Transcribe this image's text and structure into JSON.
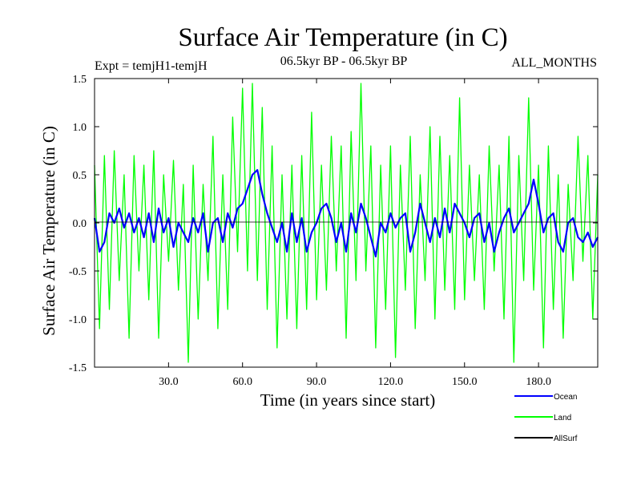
{
  "chart_data": {
    "type": "line",
    "title": "Surface Air Temperature (in C)",
    "subtitle_left": "Expt = temjH1-temjH",
    "subtitle_center": "06.5kyr BP - 06.5kyr BP",
    "subtitle_right": "ALL_MONTHS",
    "xlabel": "Time (in years since start)",
    "ylabel": "Surface Air Temperature (in C)",
    "xlim": [
      0,
      204
    ],
    "ylim": [
      -1.5,
      1.5
    ],
    "x_ticks": [
      30,
      60,
      90,
      120,
      150,
      180
    ],
    "x_tick_labels": [
      "30.0",
      "60.0",
      "90.0",
      "120.0",
      "150.0",
      "180.0"
    ],
    "y_ticks": [
      -1.5,
      -1.0,
      -0.5,
      0.0,
      0.5,
      1.0,
      1.5
    ],
    "y_tick_labels": [
      "-1.5",
      "-1.0",
      "-0.5",
      "0.0",
      "0.5",
      "1.0",
      "1.5"
    ],
    "zero_line": true,
    "legend_position": "bottom-right",
    "series": [
      {
        "name": "Land",
        "color": "#00ff00",
        "x": [
          0,
          2,
          4,
          6,
          8,
          10,
          12,
          14,
          16,
          18,
          20,
          22,
          24,
          26,
          28,
          30,
          32,
          34,
          36,
          38,
          40,
          42,
          44,
          46,
          48,
          50,
          52,
          54,
          56,
          58,
          60,
          62,
          64,
          66,
          68,
          70,
          72,
          74,
          76,
          78,
          80,
          82,
          84,
          86,
          88,
          90,
          92,
          94,
          96,
          98,
          100,
          102,
          104,
          106,
          108,
          110,
          112,
          114,
          116,
          118,
          120,
          122,
          124,
          126,
          128,
          130,
          132,
          134,
          136,
          138,
          140,
          142,
          144,
          146,
          148,
          150,
          152,
          154,
          156,
          158,
          160,
          162,
          164,
          166,
          168,
          170,
          172,
          174,
          176,
          178,
          180,
          182,
          184,
          186,
          188,
          190,
          192,
          194,
          196,
          198,
          200,
          202,
          204
        ],
        "values": [
          0.6,
          -1.1,
          0.7,
          -0.9,
          0.75,
          -0.6,
          0.5,
          -1.2,
          0.7,
          -0.5,
          0.6,
          -0.8,
          0.75,
          -1.2,
          0.5,
          -0.4,
          0.65,
          -0.7,
          0.4,
          -1.45,
          0.6,
          -1.0,
          0.4,
          -0.6,
          0.9,
          -1.1,
          0.5,
          -0.9,
          1.1,
          -0.3,
          1.4,
          -0.5,
          1.45,
          -0.6,
          1.2,
          -0.9,
          0.8,
          -1.3,
          0.5,
          -1.0,
          0.6,
          -1.1,
          0.7,
          -0.9,
          1.15,
          -0.8,
          0.6,
          -0.7,
          0.9,
          -0.5,
          0.8,
          -1.2,
          0.95,
          -0.6,
          1.45,
          -0.5,
          0.8,
          -1.3,
          0.6,
          -0.9,
          0.8,
          -1.4,
          0.6,
          -0.7,
          0.9,
          -1.1,
          0.5,
          -0.6,
          1.0,
          -1.0,
          0.9,
          -0.7,
          0.7,
          -0.9,
          1.3,
          -0.8,
          0.6,
          -0.6,
          0.5,
          -0.9,
          0.8,
          -0.5,
          0.6,
          -1.0,
          0.9,
          -1.45,
          0.7,
          -0.6,
          1.3,
          -0.7,
          0.6,
          -1.3,
          0.8,
          -0.9,
          0.5,
          -1.2,
          0.4,
          -0.6,
          0.9,
          -0.4,
          0.7,
          -1.0,
          0.5
        ]
      },
      {
        "name": "Ocean",
        "color": "#0000ff",
        "x": [
          0,
          2,
          4,
          6,
          8,
          10,
          12,
          14,
          16,
          18,
          20,
          22,
          24,
          26,
          28,
          30,
          32,
          34,
          36,
          38,
          40,
          42,
          44,
          46,
          48,
          50,
          52,
          54,
          56,
          58,
          60,
          62,
          64,
          66,
          68,
          70,
          72,
          74,
          76,
          78,
          80,
          82,
          84,
          86,
          88,
          90,
          92,
          94,
          96,
          98,
          100,
          102,
          104,
          106,
          108,
          110,
          112,
          114,
          116,
          118,
          120,
          122,
          124,
          126,
          128,
          130,
          132,
          134,
          136,
          138,
          140,
          142,
          144,
          146,
          148,
          150,
          152,
          154,
          156,
          158,
          160,
          162,
          164,
          166,
          168,
          170,
          172,
          174,
          176,
          178,
          180,
          182,
          184,
          186,
          188,
          190,
          192,
          194,
          196,
          198,
          200,
          202,
          204
        ],
        "values": [
          0.05,
          -0.3,
          -0.2,
          0.1,
          0.0,
          0.15,
          -0.05,
          0.1,
          -0.1,
          0.05,
          -0.15,
          0.1,
          -0.2,
          0.15,
          -0.1,
          0.05,
          -0.25,
          0.0,
          -0.1,
          -0.2,
          0.05,
          -0.1,
          0.1,
          -0.3,
          0.0,
          0.05,
          -0.2,
          0.1,
          -0.05,
          0.15,
          0.2,
          0.35,
          0.5,
          0.55,
          0.3,
          0.1,
          -0.05,
          -0.2,
          0.0,
          -0.3,
          0.1,
          -0.2,
          0.05,
          -0.3,
          -0.1,
          0.0,
          0.15,
          0.2,
          0.05,
          -0.2,
          0.0,
          -0.3,
          0.1,
          -0.1,
          0.2,
          0.05,
          -0.15,
          -0.35,
          0.0,
          -0.1,
          0.1,
          -0.05,
          0.05,
          0.1,
          -0.3,
          -0.1,
          0.2,
          0.0,
          -0.2,
          0.05,
          -0.15,
          0.15,
          -0.1,
          0.2,
          0.1,
          0.0,
          -0.15,
          0.05,
          0.1,
          -0.2,
          0.0,
          -0.3,
          -0.1,
          0.05,
          0.15,
          -0.1,
          0.0,
          0.1,
          0.2,
          0.45,
          0.2,
          -0.1,
          0.05,
          0.1,
          -0.2,
          -0.3,
          0.0,
          0.05,
          -0.15,
          -0.2,
          -0.1,
          -0.25,
          -0.15
        ]
      },
      {
        "name": "AllSurf",
        "color": "#000000",
        "x": [],
        "values": []
      }
    ]
  }
}
